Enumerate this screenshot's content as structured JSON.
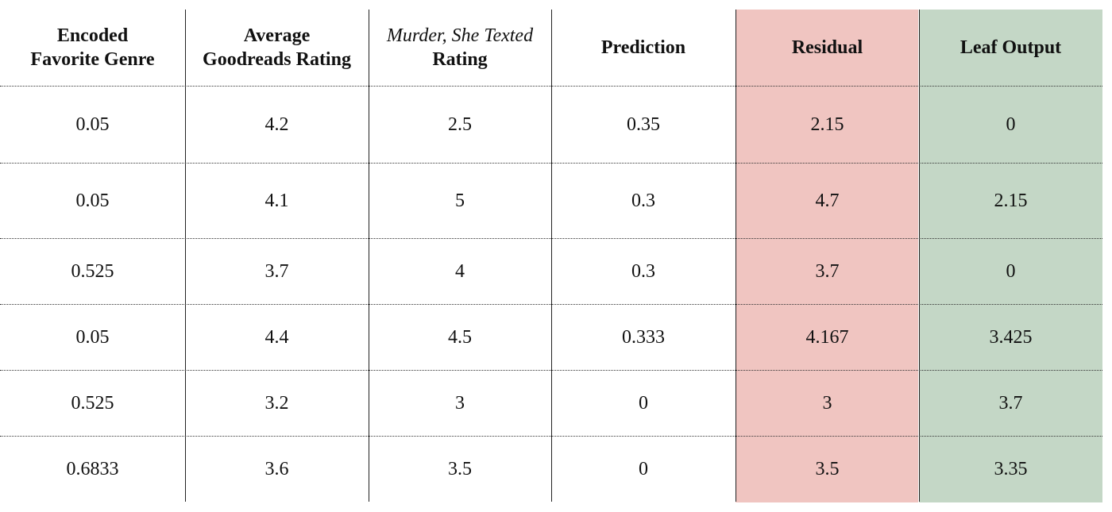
{
  "table": {
    "headers": [
      {
        "lines": [
          {
            "text": "Encoded",
            "italic": false
          },
          {
            "text": "Favorite Genre",
            "italic": false
          }
        ]
      },
      {
        "lines": [
          {
            "text": "Average",
            "italic": false
          },
          {
            "text": "Goodreads Rating",
            "italic": false
          }
        ]
      },
      {
        "lines": [
          {
            "text": "Murder, She Texted",
            "italic": true
          },
          {
            "text": "Rating",
            "italic": false
          }
        ]
      },
      {
        "lines": [
          {
            "text": "Prediction",
            "italic": false
          }
        ]
      },
      {
        "lines": [
          {
            "text": "Residual",
            "italic": false
          }
        ]
      },
      {
        "lines": [
          {
            "text": "Leaf Output",
            "italic": false
          }
        ]
      }
    ],
    "rows": [
      [
        "0.05",
        "4.2",
        "2.5",
        "0.35",
        "2.15",
        "0"
      ],
      [
        "0.05",
        "4.1",
        "5",
        "0.3",
        "4.7",
        "2.15"
      ],
      [
        "0.525",
        "3.7",
        "4",
        "0.3",
        "3.7",
        "0"
      ],
      [
        "0.05",
        "4.4",
        "4.5",
        "0.333",
        "4.167",
        "3.425"
      ],
      [
        "0.525",
        "3.2",
        "3",
        "0",
        "3",
        "3.7"
      ],
      [
        "0.6833",
        "3.6",
        "3.5",
        "0",
        "3.5",
        "3.35"
      ]
    ],
    "highlight_colors": {
      "residual": "#f0c5c1",
      "leaf_output": "#c4d7c6"
    }
  }
}
